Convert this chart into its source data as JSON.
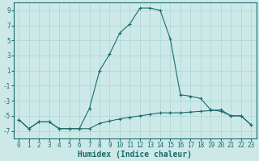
{
  "xlabel": "Humidex (Indice chaleur)",
  "background_color": "#cce9e8",
  "grid_color": "#aad4d3",
  "line_color": "#1a6b6b",
  "x_line1": [
    0,
    1,
    2,
    3,
    4,
    5,
    6,
    7,
    8,
    9,
    10,
    11,
    12,
    13,
    14,
    15,
    16,
    17,
    18,
    19,
    20,
    21,
    22,
    23
  ],
  "y_line1": [
    -5.5,
    -6.7,
    -5.8,
    -5.8,
    -6.7,
    -6.7,
    -6.7,
    -4.0,
    1.0,
    3.2,
    6.0,
    7.2,
    9.3,
    9.3,
    9.0,
    5.2,
    -2.2,
    -2.4,
    -2.7,
    -4.2,
    -4.4,
    -5.0,
    -5.0,
    -6.2
  ],
  "x_line2": [
    0,
    1,
    2,
    3,
    4,
    5,
    6,
    7,
    8,
    9,
    10,
    11,
    12,
    13,
    14,
    15,
    16,
    17,
    18,
    19,
    20,
    21,
    22,
    23
  ],
  "y_line2": [
    -5.5,
    -6.7,
    -5.8,
    -5.8,
    -6.7,
    -6.7,
    -6.7,
    -6.7,
    -6.0,
    -5.7,
    -5.4,
    -5.2,
    -5.0,
    -4.8,
    -4.6,
    -4.6,
    -4.6,
    -4.5,
    -4.4,
    -4.3,
    -4.2,
    -5.0,
    -5.0,
    -6.2
  ],
  "ylim": [
    -8,
    10
  ],
  "xlim": [
    -0.5,
    23.5
  ],
  "yticks": [
    -7,
    -5,
    -3,
    -1,
    1,
    3,
    5,
    7,
    9
  ],
  "xticks": [
    0,
    1,
    2,
    3,
    4,
    5,
    6,
    7,
    8,
    9,
    10,
    11,
    12,
    13,
    14,
    15,
    16,
    17,
    18,
    19,
    20,
    21,
    22,
    23
  ],
  "tick_fontsize": 5.5,
  "xlabel_fontsize": 7
}
